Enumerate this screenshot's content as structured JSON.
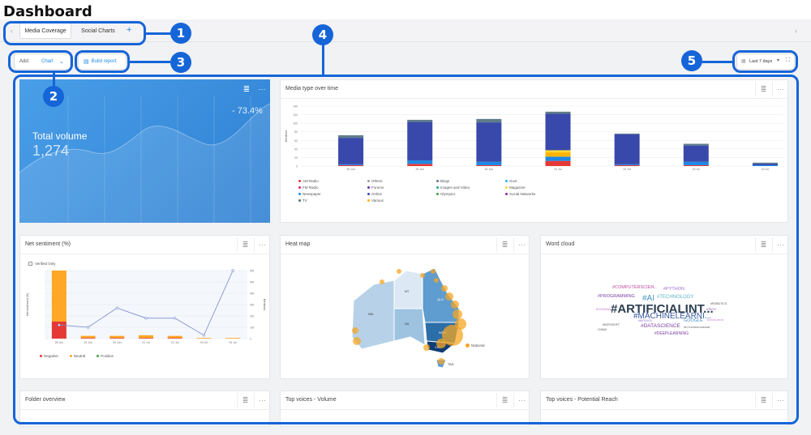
{
  "page_title": "Dashboard",
  "tabs": [
    {
      "label": "Media Coverage",
      "active": true
    },
    {
      "label": "Social Charts",
      "active": false
    }
  ],
  "toolbar": {
    "add_label": "Add:",
    "chart_select": "Chart",
    "build_report": "Build report",
    "date_range": "Last 7 days"
  },
  "callouts": [
    "1",
    "2",
    "3",
    "4",
    "5"
  ],
  "total_volume": {
    "label": "Total volume",
    "value": "1,274",
    "change": "- 73.4%"
  },
  "media_type": {
    "title": "Media type over time",
    "legend": [
      {
        "name": "AM Radio",
        "color": "#e53935"
      },
      {
        "name": "Others",
        "color": "#9e9e9e"
      },
      {
        "name": "Blogs",
        "color": "#607d8b"
      },
      {
        "name": "Govt",
        "color": "#29b6f6"
      },
      {
        "name": "FM Radio",
        "color": "#e91e63"
      },
      {
        "name": "Forums",
        "color": "#5e35b1"
      },
      {
        "name": "Images and Video",
        "color": "#26a69a"
      },
      {
        "name": "Magazine",
        "color": "#fdd835"
      },
      {
        "name": "Newspaper",
        "color": "#1e88e5"
      },
      {
        "name": "Online",
        "color": "#3949ab"
      },
      {
        "name": "Olympics",
        "color": "#43a047"
      },
      {
        "name": "Social Networks",
        "color": "#8e24aa"
      },
      {
        "name": "TV",
        "color": "#546e7a"
      },
      {
        "name": "Various",
        "color": "#ffb300"
      }
    ]
  },
  "net_sentiment": {
    "title": "Net sentiment (%)",
    "verified_only": "Verified Only",
    "ylabel": "Net sentiment (%)",
    "y2label": "Mentions",
    "legend": [
      {
        "name": "Negative",
        "color": "#e53935"
      },
      {
        "name": "Neutral",
        "color": "#ffa726"
      },
      {
        "name": "Positive",
        "color": "#43a047"
      }
    ]
  },
  "heat_map": {
    "title": "Heat map",
    "legend": "National",
    "regions": [
      "WA",
      "NT",
      "SA",
      "QLD",
      "NSW",
      "VIC",
      "TAS"
    ]
  },
  "word_cloud": {
    "title": "Word cloud",
    "words": [
      {
        "text": "#ARTIFICIALINT...",
        "size": 15,
        "color": "#2c3e50",
        "bold": true
      },
      {
        "text": "#MACHINELEARNI...",
        "size": 10,
        "color": "#3b5a9e",
        "bold": false
      },
      {
        "text": "#AI",
        "size": 10,
        "color": "#4a90c2",
        "bold": false
      },
      {
        "text": "#TECHNOLOGY",
        "size": 6,
        "color": "#5bb3c7",
        "bold": false
      },
      {
        "text": "#PROGRAMMING",
        "size": 5.5,
        "color": "#7a3fa0",
        "bold": false
      },
      {
        "text": "#COMPUTERSCIEN...",
        "size": 5.5,
        "color": "#c04ba0",
        "bold": false
      },
      {
        "text": "#PYTHON",
        "size": 5.5,
        "color": "#9c6fd3",
        "bold": false
      },
      {
        "text": "#DATASCIENCE",
        "size": 6.5,
        "color": "#7a3fa0",
        "bold": false
      },
      {
        "text": "GOOGLE",
        "size": 5.5,
        "color": "#4a90c2",
        "bold": false
      },
      {
        "text": "#DEEPLEARNING",
        "size": 5,
        "color": "#7a3fa0",
        "bold": false
      },
      {
        "text": "#CODING",
        "size": 4,
        "color": "#c070d0",
        "bold": false
      },
      {
        "text": "MICROSOFT",
        "size": 3.5,
        "color": "#555",
        "bold": false
      },
      {
        "text": "#ROBOTICS",
        "size": 3.5,
        "color": "#555",
        "bold": false
      },
      {
        "text": "#BIGDATA",
        "size": 3.5,
        "color": "#9c6fd3",
        "bold": false
      },
      {
        "text": "#TECH",
        "size": 3.5,
        "color": "#7a3fa0",
        "bold": false
      },
      {
        "text": "CHINA",
        "size": 3.5,
        "color": "#555",
        "bold": false
      },
      {
        "text": "#PYTHONPROGRAMM...",
        "size": 3,
        "color": "#555",
        "bold": false
      },
      {
        "text": "#INNOVATION",
        "size": 3,
        "color": "#c070d0",
        "bold": false
      }
    ]
  },
  "folder_overview": {
    "title": "Folder overview"
  },
  "top_voices_volume": {
    "title": "Top voices - Volume"
  },
  "top_voices_reach": {
    "title": "Top voices - Potential Reach"
  },
  "chart_data": [
    {
      "type": "bar",
      "title": "Media type over time",
      "ylabel": "Mentions",
      "categories": [
        "28 Jun",
        "29 Jun",
        "30 Jun",
        "01 Jul",
        "02 Jul",
        "03 Jul",
        "04 Jul"
      ],
      "ylim": [
        0,
        140
      ],
      "yticks": [
        0,
        20,
        40,
        60,
        80,
        100,
        120,
        140
      ],
      "series": [
        {
          "name": "AM Radio",
          "color": "#e53935",
          "values": [
            2,
            5,
            2,
            12,
            2,
            2,
            0
          ]
        },
        {
          "name": "Newspaper",
          "color": "#1e88e5",
          "values": [
            2,
            8,
            8,
            10,
            2,
            8,
            2
          ]
        },
        {
          "name": "Various",
          "color": "#ffb300",
          "values": [
            0,
            0,
            0,
            10,
            0,
            0,
            0
          ]
        },
        {
          "name": "Magazine",
          "color": "#fdd835",
          "values": [
            0,
            0,
            0,
            5,
            0,
            0,
            0
          ]
        },
        {
          "name": "Online",
          "color": "#3949ab",
          "values": [
            62,
            90,
            92,
            85,
            70,
            38,
            4
          ]
        },
        {
          "name": "Blogs",
          "color": "#607d8b",
          "values": [
            6,
            5,
            8,
            5,
            2,
            4,
            2
          ]
        }
      ]
    },
    {
      "type": "bar",
      "title": "Net sentiment (%)",
      "categories": [
        "28 Jun",
        "29 Jun",
        "30 Jun",
        "01 Jul",
        "02 Jul",
        "03 Jul",
        "04 Jul"
      ],
      "ylabel": "Net sentiment (%)",
      "y2label": "Mentions",
      "y2lim": [
        0,
        600
      ],
      "y2ticks": [
        0,
        100,
        200,
        300,
        400,
        500,
        600
      ],
      "series": [
        {
          "name": "Negative",
          "color": "#e53935",
          "values": [
            0.25,
            0.01,
            0.01,
            0.01,
            0.01,
            0.0,
            0.0
          ]
        },
        {
          "name": "Neutral",
          "color": "#ffa726",
          "values": [
            0.75,
            0.03,
            0.03,
            0.04,
            0.03,
            0.01,
            0.01
          ]
        },
        {
          "name": "Positive",
          "color": "#43a047",
          "values": [
            0.0,
            0.0,
            0.0,
            0.0,
            0.0,
            0.0,
            0.0
          ]
        },
        {
          "name": "Mentions",
          "type": "line",
          "color": "#7986cb",
          "values": [
            120,
            100,
            270,
            180,
            180,
            30,
            600
          ]
        }
      ]
    }
  ]
}
